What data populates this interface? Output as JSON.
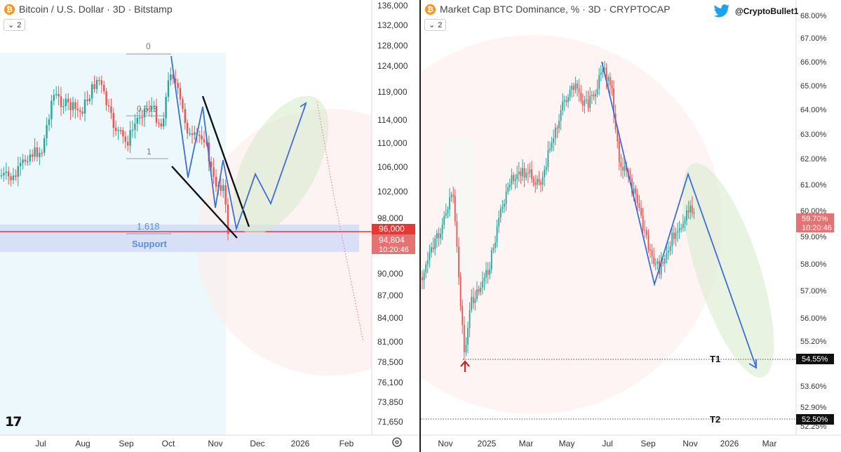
{
  "left_chart": {
    "symbol_badge": "₿",
    "title": "Bitcoin / U.S. Dollar · 3D · Bitstamp",
    "collapse_count": "2",
    "price_axis_ticks": [
      "136,000",
      "132,000",
      "128,000",
      "124,000",
      "119,000",
      "114,000",
      "110,000",
      "106,000",
      "102,000",
      "98,000",
      "90,000",
      "87,000",
      "84,000",
      "81,000",
      "78,500",
      "76,100",
      "73,850",
      "71,650"
    ],
    "time_axis_ticks": [
      "Jul",
      "Aug",
      "Sep",
      "Oct",
      "Nov",
      "Dec",
      "2026",
      "Feb"
    ],
    "current_price_label": "96,000",
    "last_price_label": "94,804",
    "countdown_label": "10:20:46",
    "fib_labels": {
      "zero": "0",
      "mid": "0.618",
      "one": "1",
      "ext": "1.618"
    },
    "support_label": "Support",
    "colors": {
      "up": "#26a69a",
      "down": "#ef5350",
      "projection": "#3a6fd8",
      "support_zone": "#c8d5f5",
      "price_line": "#e53935"
    }
  },
  "right_chart": {
    "symbol_badge": "₿",
    "title": "Market Cap BTC Dominance, % · 3D · CRYPTOCAP",
    "collapse_count": "2",
    "twitter_handle": "@CryptoBullet1",
    "percent_axis_ticks": [
      "68.00%",
      "67.00%",
      "66.00%",
      "65.00%",
      "64.00%",
      "63.00%",
      "62.00%",
      "61.00%",
      "60.00%",
      "59.00%",
      "58.00%",
      "57.00%",
      "56.00%",
      "55.20%",
      "53.60%",
      "52.90%",
      "52.25%"
    ],
    "time_axis_ticks": [
      "Nov",
      "2025",
      "Mar",
      "May",
      "Jul",
      "Sep",
      "Nov",
      "2026",
      "Mar"
    ],
    "current_value_label": "59.70%",
    "countdown_label": "10:20:46",
    "target_labels": {
      "t1": "T1",
      "t2": "T2"
    },
    "target_values": {
      "t1": "54.55%",
      "t2": "52.50%"
    }
  },
  "footer": {
    "tradingview_logo": "17",
    "settings_icon": "gear-icon"
  }
}
